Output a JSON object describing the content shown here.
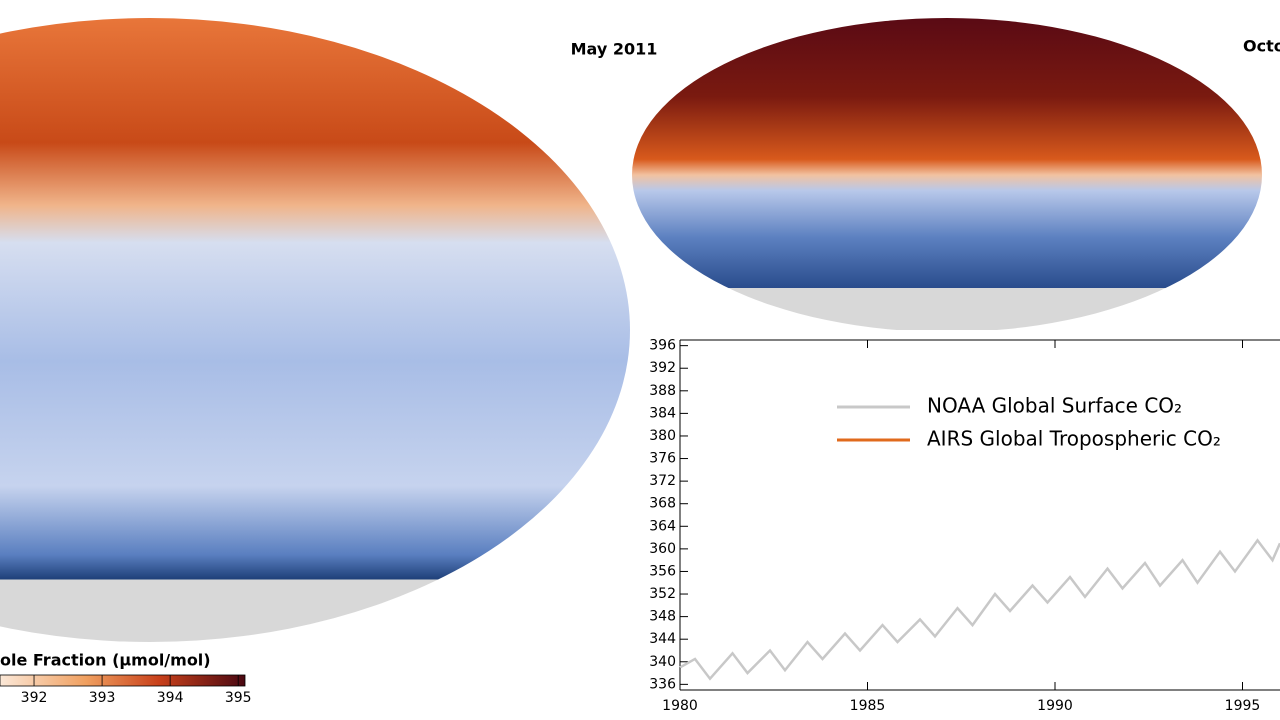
{
  "chart_data": {
    "type": "line",
    "map_titles": [
      "May 2011",
      "Octo"
    ],
    "colorbar": {
      "label": "ole Fraction (μmol/mol)",
      "clim": [
        391.5,
        395.1
      ],
      "ticks": [
        392,
        393,
        394,
        395
      ]
    },
    "x": [
      1980.0,
      1980.4,
      1980.8,
      1981.4,
      1981.8,
      1982.4,
      1982.8,
      1983.4,
      1983.8,
      1984.4,
      1984.8,
      1985.4,
      1985.8,
      1986.4,
      1986.8,
      1987.4,
      1987.8,
      1988.4,
      1988.8,
      1989.4,
      1989.8,
      1990.4,
      1990.8,
      1991.4,
      1991.8,
      1992.4,
      1992.8,
      1993.4,
      1993.8,
      1994.4,
      1994.8,
      1995.4,
      1995.8,
      1996.0
    ],
    "series": [
      {
        "name": "NOAA Global Surface CO₂",
        "color": "#c8c8c8",
        "values": [
          339,
          340.5,
          337,
          341.5,
          338,
          342,
          338.5,
          343.5,
          340.5,
          345,
          342,
          346.5,
          343.5,
          347.5,
          344.5,
          349.5,
          346.5,
          352,
          349,
          353.5,
          350.5,
          355,
          351.5,
          356.5,
          353,
          357.5,
          353.5,
          358,
          354,
          359.5,
          356,
          361.5,
          358,
          361
        ]
      },
      {
        "name": "AIRS Global Tropospheric CO₂",
        "color": "#e06a1c",
        "values": [
          null,
          null,
          null,
          null,
          null,
          null,
          null,
          null,
          null,
          null,
          null,
          null,
          null,
          null,
          null,
          null,
          null,
          null,
          null,
          null,
          null,
          null,
          null,
          null,
          null,
          null,
          null,
          null,
          null,
          null,
          null,
          null,
          null,
          null
        ]
      }
    ],
    "xlim": [
      1980,
      1996
    ],
    "ylim": [
      335,
      397
    ],
    "xticks": [
      1980,
      1985,
      1990,
      1995
    ],
    "yticks": [
      336,
      340,
      344,
      348,
      352,
      356,
      360,
      364,
      368,
      372,
      376,
      380,
      384,
      388,
      392,
      396
    ]
  }
}
